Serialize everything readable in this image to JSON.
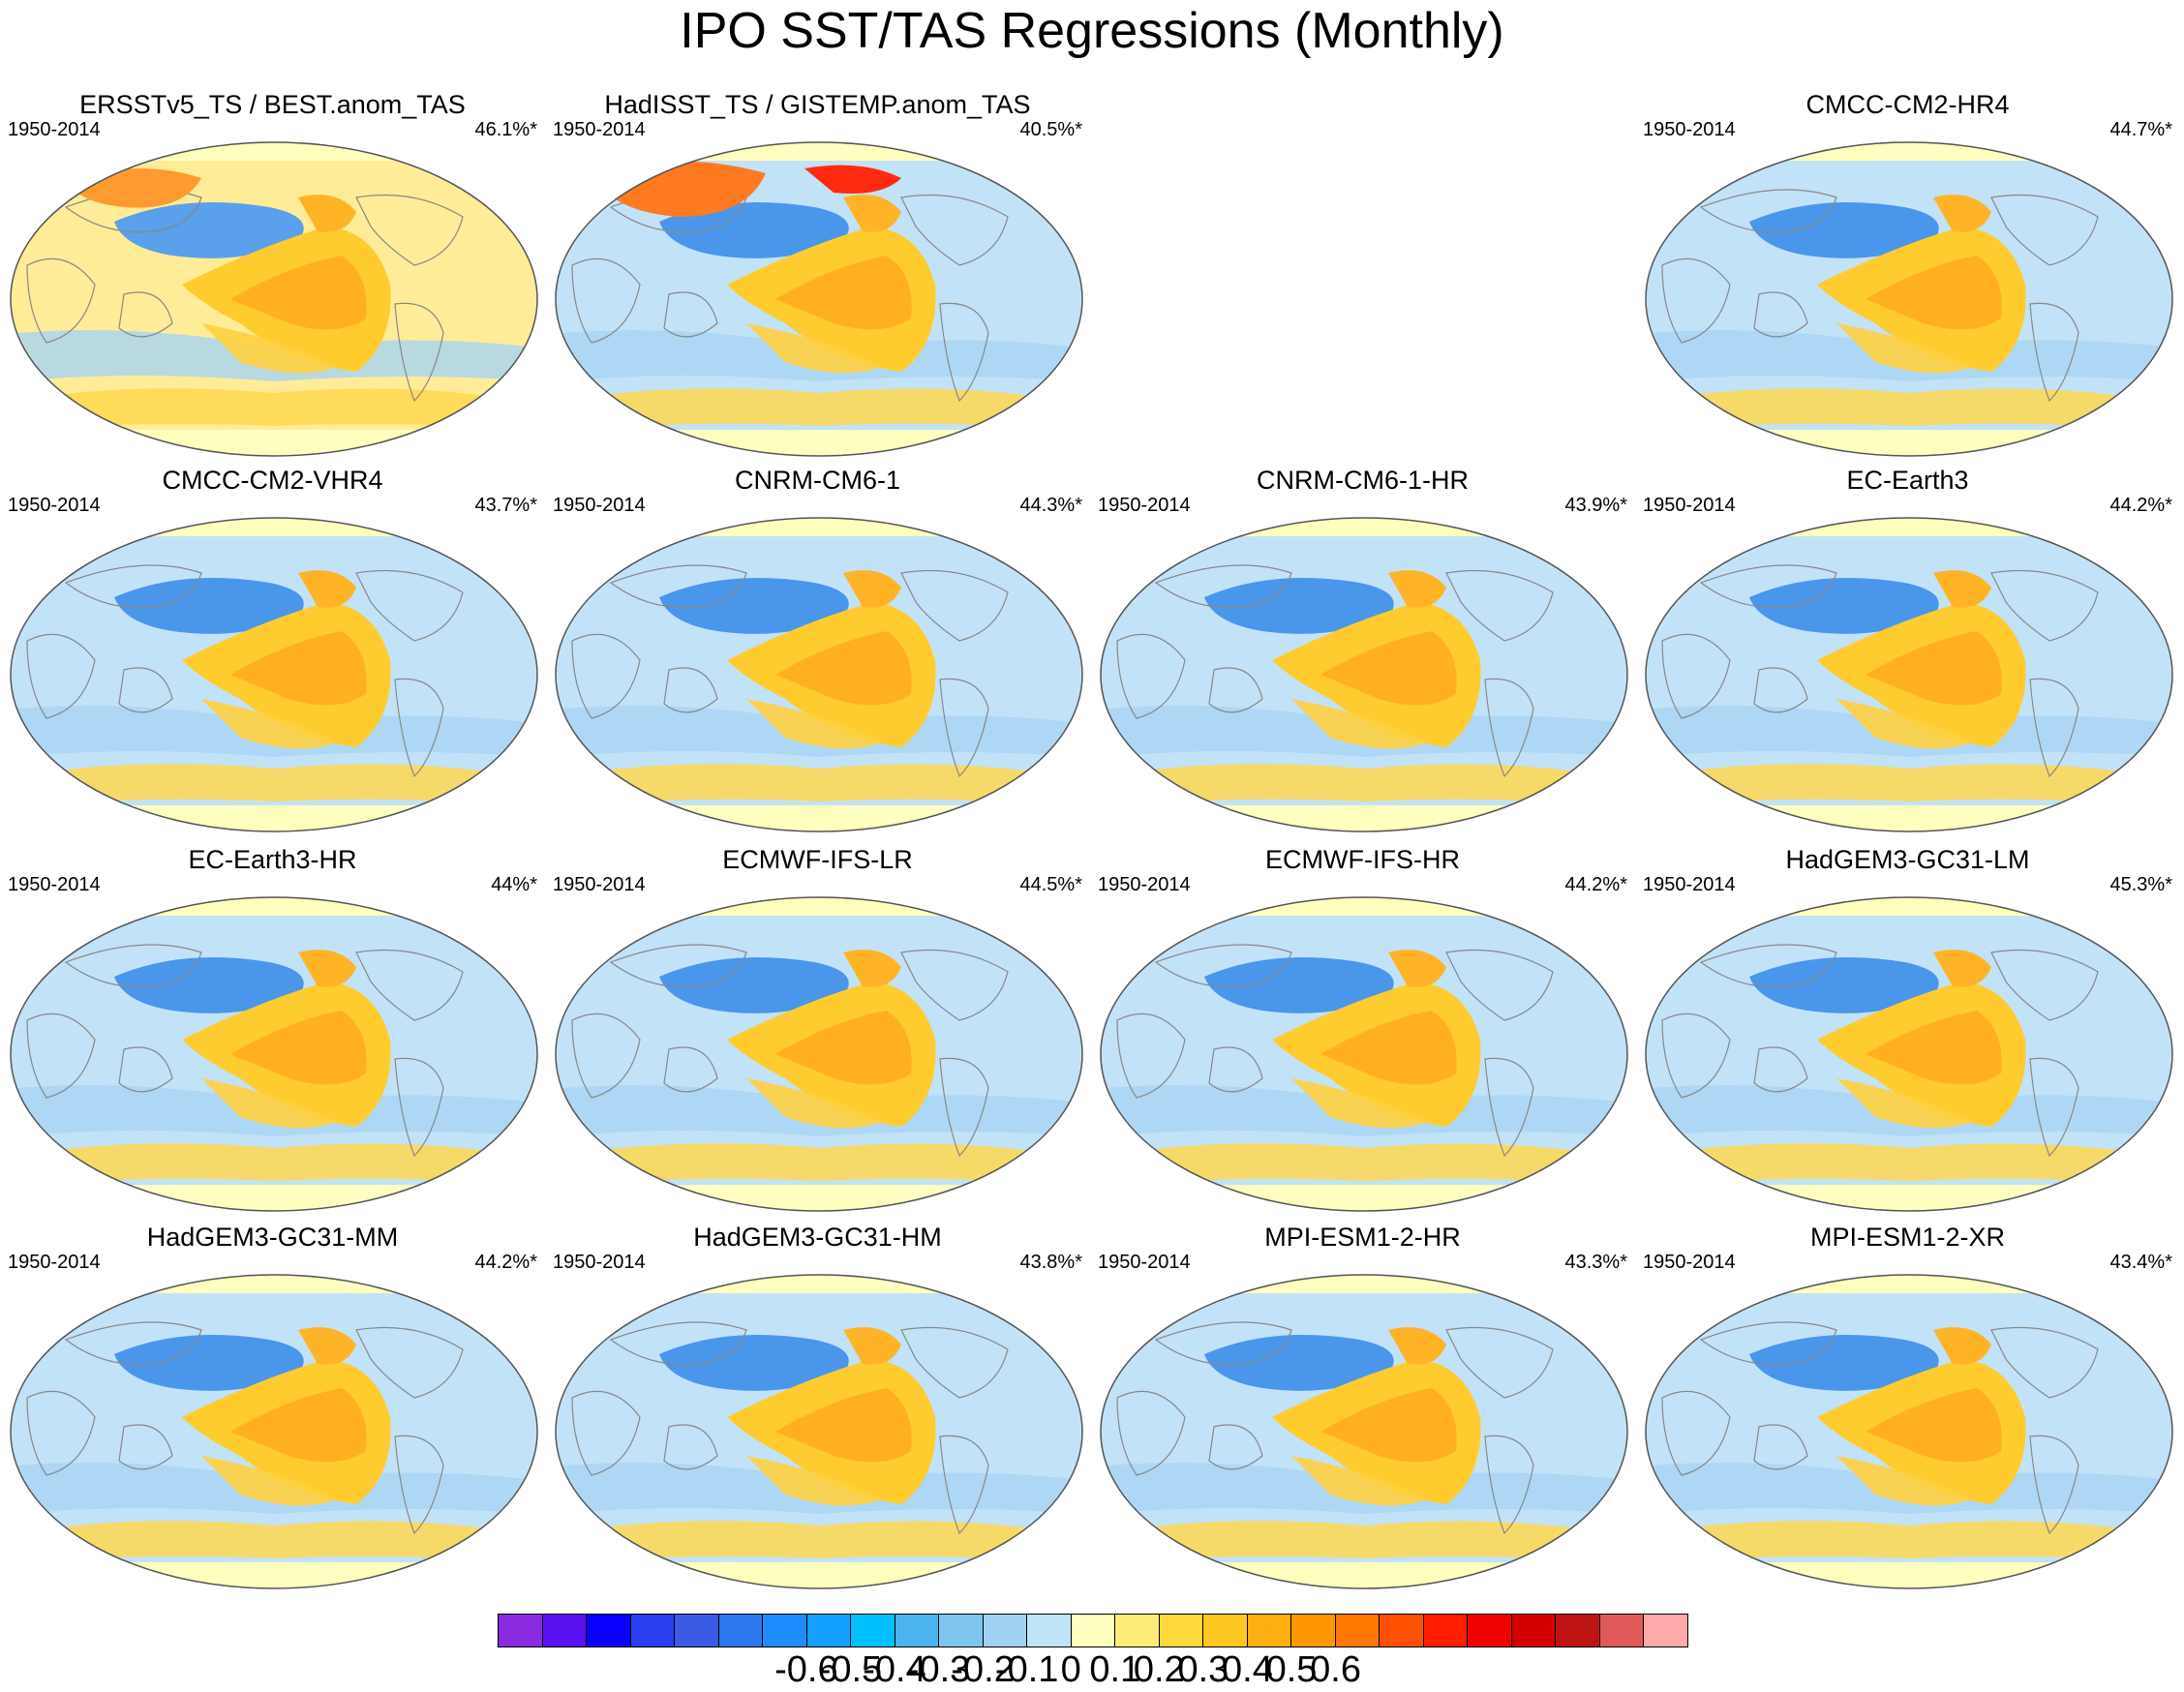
{
  "title": "IPO SST/TAS Regressions (Monthly)",
  "period": "1950-2014",
  "panels": [
    {
      "title": "ERSSTv5_TS / BEST.anom_TAS",
      "pct": "46.1%*",
      "col": 0,
      "row": 0
    },
    {
      "title": "HadISST_TS / GISTEMP.anom_TAS",
      "pct": "40.5%*",
      "col": 1,
      "row": 0
    },
    {
      "title": "CMCC-CM2-HR4",
      "pct": "44.7%*",
      "col": 3,
      "row": 0
    },
    {
      "title": "CMCC-CM2-VHR4",
      "pct": "43.7%*",
      "col": 0,
      "row": 1
    },
    {
      "title": "CNRM-CM6-1",
      "pct": "44.3%*",
      "col": 1,
      "row": 1
    },
    {
      "title": "CNRM-CM6-1-HR",
      "pct": "43.9%*",
      "col": 2,
      "row": 1
    },
    {
      "title": "EC-Earth3",
      "pct": "44.2%*",
      "col": 3,
      "row": 1
    },
    {
      "title": "EC-Earth3-HR",
      "pct": "44%*",
      "col": 0,
      "row": 2
    },
    {
      "title": "ECMWF-IFS-LR",
      "pct": "44.5%*",
      "col": 1,
      "row": 2
    },
    {
      "title": "ECMWF-IFS-HR",
      "pct": "44.2%*",
      "col": 2,
      "row": 2
    },
    {
      "title": "HadGEM3-GC31-LM",
      "pct": "45.3%*",
      "col": 3,
      "row": 2
    },
    {
      "title": "HadGEM3-GC31-MM",
      "pct": "44.2%*",
      "col": 0,
      "row": 3
    },
    {
      "title": "HadGEM3-GC31-HM",
      "pct": "43.8%*",
      "col": 1,
      "row": 3
    },
    {
      "title": "MPI-ESM1-2-HR",
      "pct": "43.3%*",
      "col": 2,
      "row": 3
    },
    {
      "title": "MPI-ESM1-2-XR",
      "pct": "43.4%*",
      "col": 3,
      "row": 3
    }
  ],
  "colorbar": {
    "colors": [
      "#8a2be2",
      "#5a12f0",
      "#0a00ff",
      "#2a3ef0",
      "#3b5ae6",
      "#2e78ee",
      "#1e8cff",
      "#14a0ff",
      "#00bfff",
      "#4ab4ee",
      "#7ec6ee",
      "#9fd2f2",
      "#bfe4f8",
      "#ffffc0",
      "#ffec78",
      "#ffd83c",
      "#ffc820",
      "#ffb010",
      "#ff9800",
      "#ff7800",
      "#ff5000",
      "#ff2000",
      "#f00000",
      "#d40000",
      "#be1414",
      "#e05a5a",
      "#ffaaaa"
    ],
    "labels": [
      "-0.6",
      "-0.5",
      "-0.4",
      "-0.3",
      "-0.2",
      "-0.1",
      "0",
      "0.1",
      "0.2",
      "0.3",
      "0.4",
      "0.5",
      "0.6"
    ],
    "label_positions": [
      -0.6,
      -0.5,
      -0.4,
      -0.3,
      -0.2,
      -0.1,
      0,
      0.1,
      0.2,
      0.3,
      0.4,
      0.5,
      0.6
    ]
  }
}
